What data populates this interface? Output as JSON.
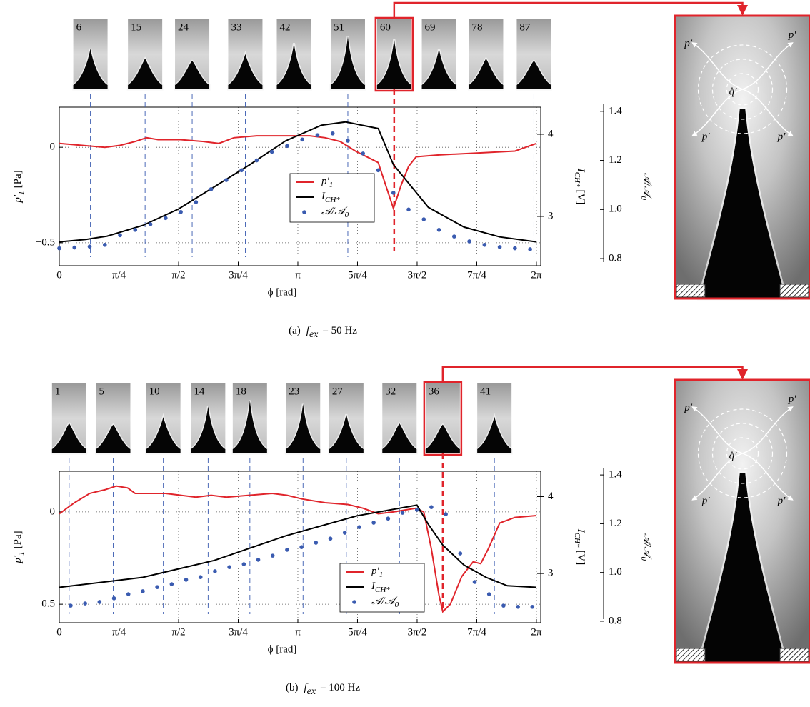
{
  "chart_data": [
    {
      "type": "line",
      "caption": {
        "prefix": "(a)",
        "symbol": "f",
        "subscript": "ex",
        "rest": "= 50 Hz"
      },
      "xlabel": "ϕ [rad]",
      "ylabel": {
        "symbol": "p′",
        "subscript": "1",
        "unit": "[Pa]"
      },
      "y2label": {
        "symbol": "I",
        "subscript": "CH*",
        "unit": "[V]"
      },
      "y3label": {
        "symbol": "𝒜/𝒜",
        "subscript": "0"
      },
      "xlim": [
        0,
        6.34
      ],
      "xticks": [
        0,
        {
          "value": 0.7854,
          "label": "π/4"
        },
        {
          "value": 1.5708,
          "label": "π/2"
        },
        {
          "value": 2.3562,
          "label": "3π/4"
        },
        {
          "value": 3.1416,
          "label": "π"
        },
        {
          "value": 3.927,
          "label": "5π/4"
        },
        {
          "value": 4.7124,
          "label": "3π/2"
        },
        {
          "value": 5.4978,
          "label": "7π/4"
        },
        {
          "value": 6.2832,
          "label": "2π"
        }
      ],
      "ylim": [
        -0.62,
        0.21
      ],
      "yticks": [
        {
          "value": -0.5,
          "label": "−0.5"
        },
        0
      ],
      "y2lim": [
        2.4,
        4.33
      ],
      "y2ticks": [
        3,
        4
      ],
      "y3lim": [
        0.771,
        1.417
      ],
      "y3ticks": [
        0.8,
        {
          "value": 1.0,
          "label": "1.0"
        },
        1.2,
        1.4
      ],
      "grid": true,
      "legend": "center",
      "series": [
        {
          "name": "p′",
          "subscript": "1",
          "color": "#e0242b",
          "style": "line",
          "axis": "y",
          "x": [
            0,
            0.3,
            0.6,
            0.8,
            1.0,
            1.15,
            1.3,
            1.6,
            1.9,
            2.1,
            2.3,
            2.6,
            3.0,
            3.3,
            3.5,
            3.7,
            3.9,
            4.1,
            4.2,
            4.3,
            4.4,
            4.5,
            4.6,
            4.7,
            5.0,
            5.5,
            6.0,
            6.2832
          ],
          "values": [
            0.02,
            0.01,
            0.0,
            0.01,
            0.03,
            0.05,
            0.04,
            0.04,
            0.03,
            0.02,
            0.05,
            0.06,
            0.06,
            0.06,
            0.05,
            0.03,
            -0.02,
            -0.06,
            -0.08,
            -0.2,
            -0.32,
            -0.2,
            -0.1,
            -0.05,
            -0.04,
            -0.03,
            -0.02,
            0.02
          ]
        },
        {
          "name": "I",
          "subscript": "CH*",
          "color": "#000000",
          "style": "line",
          "axis": "y2",
          "x": [
            0,
            0.35,
            0.63,
            1.1,
            1.57,
            2.04,
            2.51,
            2.98,
            3.45,
            3.77,
            4.2,
            4.4,
            4.86,
            5.33,
            5.8,
            6.2832
          ],
          "values": [
            2.69,
            2.72,
            2.76,
            2.89,
            3.09,
            3.36,
            3.63,
            3.92,
            4.11,
            4.15,
            4.07,
            3.63,
            3.11,
            2.87,
            2.75,
            2.69
          ]
        },
        {
          "name": "𝒜/𝒜",
          "subscript": "0",
          "color": "#3a5bb0",
          "style": "dots",
          "axis": "y3",
          "x": [
            0,
            0.2,
            0.4,
            0.6,
            0.8,
            1.0,
            1.2,
            1.4,
            1.6,
            1.8,
            2.0,
            2.2,
            2.4,
            2.6,
            2.8,
            3.0,
            3.2,
            3.4,
            3.6,
            3.8,
            4.0,
            4.2,
            4.4,
            4.6,
            4.8,
            5.0,
            5.2,
            5.4,
            5.6,
            5.8,
            6.0,
            6.2
          ],
          "values": [
            0.842,
            0.845,
            0.849,
            0.856,
            0.895,
            0.917,
            0.94,
            0.965,
            0.99,
            1.03,
            1.083,
            1.12,
            1.16,
            1.2,
            1.235,
            1.259,
            1.285,
            1.303,
            1.31,
            1.28,
            1.228,
            1.16,
            1.068,
            1.0,
            0.96,
            0.917,
            0.89,
            0.87,
            0.856,
            0.847,
            0.842,
            0.838
          ]
        }
      ],
      "frames": [
        {
          "frame": 6,
          "x": 0.41
        },
        {
          "frame": 15,
          "x": 1.13
        },
        {
          "frame": 24,
          "x": 1.75
        },
        {
          "frame": 33,
          "x": 2.45
        },
        {
          "frame": 42,
          "x": 3.09
        },
        {
          "frame": 51,
          "x": 3.8
        },
        {
          "frame": 60,
          "x": 4.41,
          "highlighted": true
        },
        {
          "frame": 69,
          "x": 5.0
        },
        {
          "frame": 78,
          "x": 5.62
        },
        {
          "frame": 87,
          "x": 6.25
        }
      ],
      "annotations": [
        "p′",
        "p′",
        "p′",
        "p′",
        "q̇′"
      ]
    },
    {
      "type": "line",
      "caption": {
        "prefix": "(b)",
        "symbol": "f",
        "subscript": "ex",
        "rest": "= 100 Hz"
      },
      "xlabel": "ϕ [rad]",
      "ylabel": {
        "symbol": "p′",
        "subscript": "1",
        "unit": "[Pa]"
      },
      "y2label": {
        "symbol": "I",
        "subscript": "CH*",
        "unit": "[V]"
      },
      "y3label": {
        "symbol": "𝒜/𝒜",
        "subscript": "0"
      },
      "xlim": [
        0,
        6.34
      ],
      "xticks": [
        0,
        {
          "value": 0.7854,
          "label": "π/4"
        },
        {
          "value": 1.5708,
          "label": "π/2"
        },
        {
          "value": 2.3562,
          "label": "3π/4"
        },
        {
          "value": 3.1416,
          "label": "π"
        },
        {
          "value": 3.927,
          "label": "5π/4"
        },
        {
          "value": 4.7124,
          "label": "3π/2"
        },
        {
          "value": 5.4978,
          "label": "7π/4"
        },
        {
          "value": 6.2832,
          "label": "2π"
        }
      ],
      "ylim": [
        -0.6,
        0.22
      ],
      "yticks": [
        {
          "value": -0.5,
          "label": "−0.5"
        },
        0
      ],
      "y2lim": [
        2.36,
        4.33
      ],
      "y2ticks": [
        3,
        4
      ],
      "y3lim": [
        0.794,
        1.415
      ],
      "y3ticks": [
        0.8,
        {
          "value": 1.0,
          "label": "1.0"
        },
        1.2,
        1.4
      ],
      "grid": true,
      "legend": "lower center",
      "series": [
        {
          "name": "p′",
          "subscript": "1",
          "color": "#e0242b",
          "style": "line",
          "axis": "y",
          "x": [
            0,
            0.2,
            0.4,
            0.6,
            0.75,
            0.9,
            1.0,
            1.2,
            1.4,
            1.6,
            1.8,
            2.0,
            2.2,
            2.5,
            2.8,
            3.0,
            3.2,
            3.5,
            3.8,
            4.0,
            4.2,
            4.4,
            4.7,
            4.8,
            4.9,
            5.0,
            5.05,
            5.15,
            5.3,
            5.45,
            5.55,
            5.65,
            5.8,
            6.0,
            6.2832
          ],
          "values": [
            -0.01,
            0.05,
            0.1,
            0.12,
            0.14,
            0.13,
            0.1,
            0.1,
            0.1,
            0.09,
            0.08,
            0.09,
            0.08,
            0.09,
            0.1,
            0.09,
            0.07,
            0.05,
            0.04,
            0.02,
            -0.01,
            0.0,
            0.02,
            0.0,
            -0.2,
            -0.45,
            -0.54,
            -0.5,
            -0.35,
            -0.27,
            -0.28,
            -0.2,
            -0.06,
            -0.03,
            -0.02
          ]
        },
        {
          "name": "I",
          "subscript": "CH*",
          "color": "#000000",
          "style": "line",
          "axis": "y2",
          "x": [
            0,
            1.1,
            2.04,
            2.98,
            3.92,
            4.71,
            4.86,
            5.05,
            5.33,
            5.62,
            5.9,
            6.2832
          ],
          "values": [
            2.82,
            2.95,
            3.17,
            3.49,
            3.75,
            3.89,
            3.64,
            3.37,
            3.11,
            2.95,
            2.84,
            2.82
          ]
        },
        {
          "name": "𝒜/𝒜",
          "subscript": "0",
          "color": "#3a5bb0",
          "style": "dots",
          "axis": "y3",
          "x": [
            0.15,
            0.34,
            0.53,
            0.72,
            0.91,
            1.1,
            1.29,
            1.48,
            1.67,
            1.86,
            2.05,
            2.24,
            2.43,
            2.62,
            2.81,
            3.0,
            3.19,
            3.38,
            3.57,
            3.76,
            3.95,
            4.14,
            4.33,
            4.52,
            4.71,
            4.9,
            5.09,
            5.28,
            5.47,
            5.66,
            5.85,
            6.04,
            6.23
          ],
          "values": [
            0.864,
            0.873,
            0.879,
            0.894,
            0.911,
            0.923,
            0.94,
            0.952,
            0.97,
            0.981,
            1.005,
            1.022,
            1.034,
            1.052,
            1.069,
            1.093,
            1.104,
            1.122,
            1.139,
            1.163,
            1.186,
            1.204,
            1.221,
            1.245,
            1.257,
            1.268,
            1.239,
            1.078,
            0.961,
            0.911,
            0.864,
            0.859,
            0.859
          ]
        }
      ],
      "frames": [
        {
          "frame": 1,
          "x": 0.13
        },
        {
          "frame": 5,
          "x": 0.71
        },
        {
          "frame": 10,
          "x": 1.37
        },
        {
          "frame": 14,
          "x": 1.96
        },
        {
          "frame": 18,
          "x": 2.51
        },
        {
          "frame": 23,
          "x": 3.21
        },
        {
          "frame": 27,
          "x": 3.78
        },
        {
          "frame": 32,
          "x": 4.48
        },
        {
          "frame": 36,
          "x": 5.05,
          "highlighted": true
        },
        {
          "frame": 41,
          "x": 5.73
        }
      ],
      "annotations": [
        "p′",
        "p′",
        "p′",
        "p′",
        "q̇′"
      ]
    }
  ]
}
